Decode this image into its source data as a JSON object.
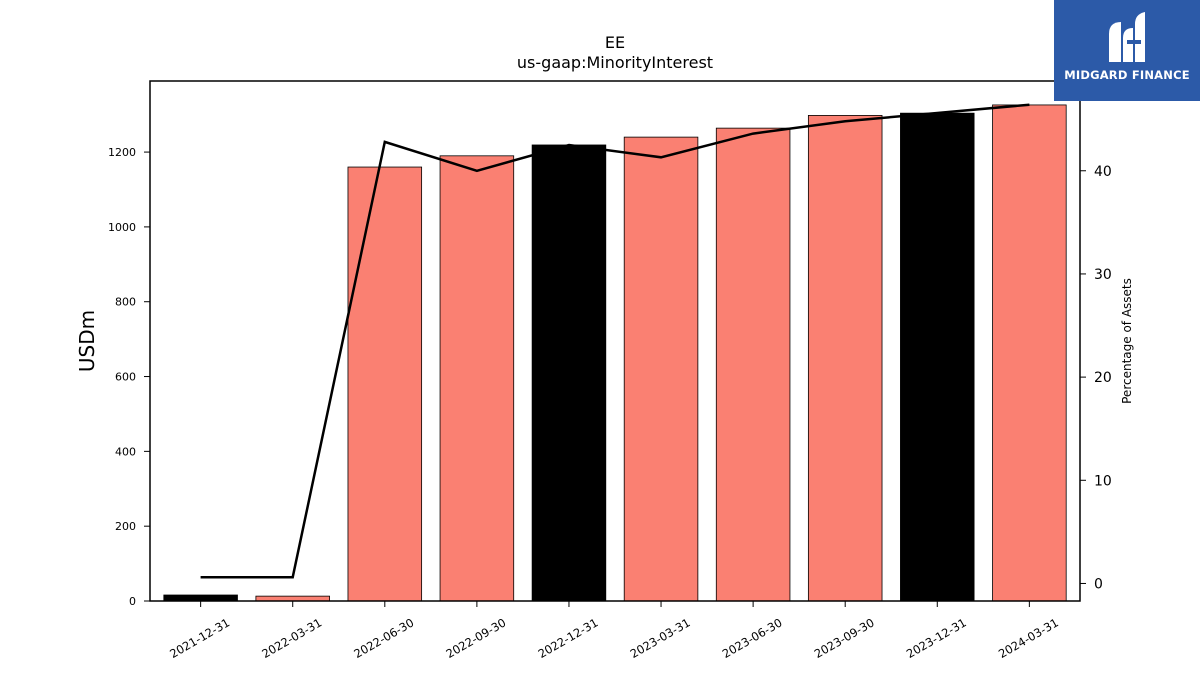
{
  "chart_data": {
    "type": "bar",
    "title": "EE",
    "subtitle": "us-gaap:MinorityInterest",
    "ylabel": "USDm",
    "y2label": "Percentage of Assets",
    "categories": [
      "2021-12-31",
      "2022-03-31",
      "2022-06-30",
      "2022-09-30",
      "2022-12-31",
      "2023-03-31",
      "2023-06-30",
      "2023-09-30",
      "2023-12-31",
      "2024-03-31"
    ],
    "series": [
      {
        "values": [
          16,
          13,
          1160,
          1190,
          1219,
          1240,
          1264,
          1298,
          1304,
          1326
        ]
      },
      {
        "axis": "right",
        "type": "line",
        "values": [
          0.6,
          0.6,
          42.8,
          40.0,
          42.5,
          41.3,
          43.6,
          44.8,
          45.6,
          46.4
        ]
      }
    ],
    "bar_colors": [
      "#000000",
      "#fa8072",
      "#fa8072",
      "#fa8072",
      "#000000",
      "#fa8072",
      "#fa8072",
      "#fa8072",
      "#000000",
      "#fa8072"
    ],
    "ylim": [
      0,
      1390
    ],
    "y2lim": [
      -1.7,
      48.7
    ],
    "yticks": [
      0,
      200,
      400,
      600,
      800,
      1000,
      1200
    ],
    "y2ticks": [
      0,
      10,
      20,
      30,
      40
    ],
    "line_color": "#000000",
    "grid": false
  },
  "logo": {
    "text": "MIDGARD FINANCE",
    "icon": "midgard-logo-icon",
    "background": "#2c5aa8"
  }
}
